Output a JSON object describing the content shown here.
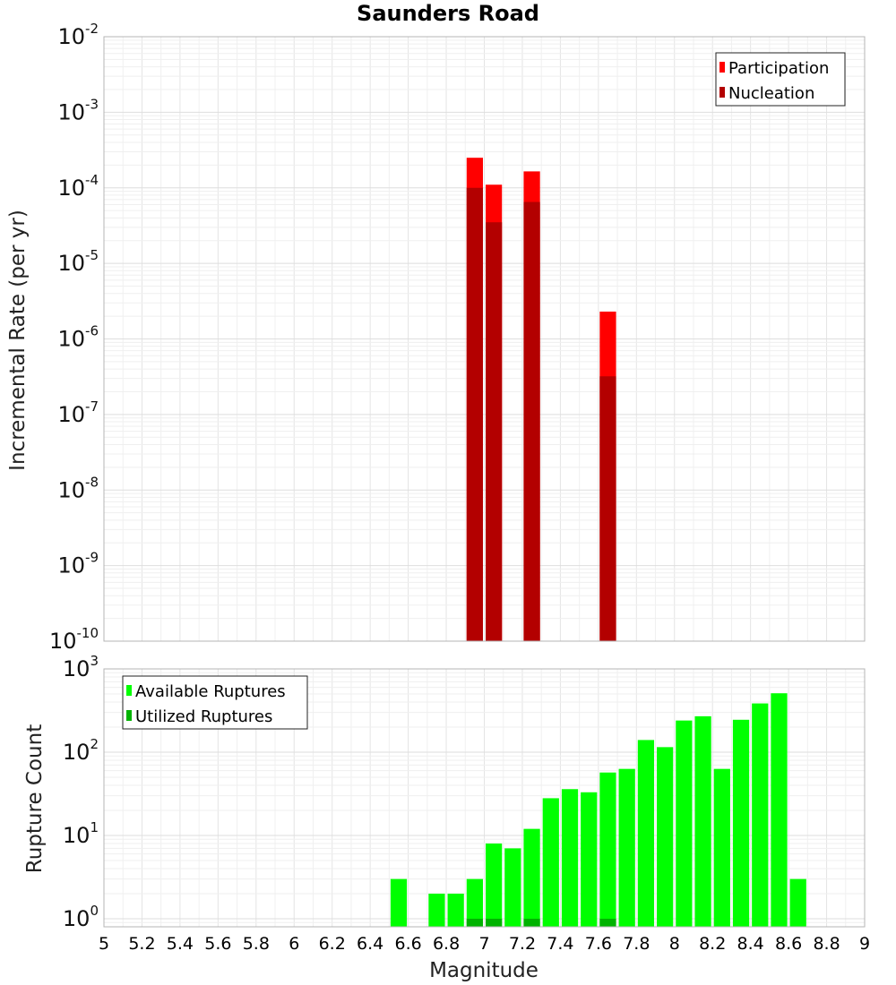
{
  "chart_data": [
    {
      "type": "bar",
      "title": "Saunders Road",
      "xlabel": "",
      "ylabel": "Incremental Rate (per yr)",
      "y_scale": "log",
      "ylim": [
        1e-10,
        0.01
      ],
      "xlim": [
        5,
        9
      ],
      "bin_width": 0.1,
      "grid": true,
      "legend_position": "top-right",
      "series": [
        {
          "name": "Participation",
          "color": "#ff0000",
          "x": [
            6.95,
            7.05,
            7.25,
            7.65
          ],
          "values": [
            0.00025,
            0.00011,
            0.000165,
            2.3e-06
          ]
        },
        {
          "name": "Nucleation",
          "color": "#b30000",
          "x": [
            6.95,
            7.05,
            7.25,
            7.65
          ],
          "values": [
            0.0001,
            3.5e-05,
            6.5e-05,
            3.2e-07
          ]
        }
      ],
      "y_ticks": [
        {
          "base": "10",
          "exp": "-10",
          "value": 1e-10
        },
        {
          "base": "10",
          "exp": "-9",
          "value": 1e-09
        },
        {
          "base": "10",
          "exp": "-8",
          "value": 1e-08
        },
        {
          "base": "10",
          "exp": "-7",
          "value": 1e-07
        },
        {
          "base": "10",
          "exp": "-6",
          "value": 1e-06
        },
        {
          "base": "10",
          "exp": "-5",
          "value": 1e-05
        },
        {
          "base": "10",
          "exp": "-4",
          "value": 0.0001
        },
        {
          "base": "10",
          "exp": "-3",
          "value": 0.001
        },
        {
          "base": "10",
          "exp": "-2",
          "value": 0.01
        }
      ]
    },
    {
      "type": "bar",
      "title": "",
      "xlabel": "Magnitude",
      "ylabel": "Rupture Count",
      "y_scale": "log",
      "ylim": [
        0.8,
        1000
      ],
      "xlim": [
        5,
        9
      ],
      "bin_width": 0.1,
      "grid": true,
      "legend_position": "top-left",
      "x_ticks": [
        "5",
        "5.2",
        "5.4",
        "5.6",
        "5.8",
        "6",
        "6.2",
        "6.4",
        "6.6",
        "6.8",
        "7",
        "7.2",
        "7.4",
        "7.6",
        "7.8",
        "8",
        "8.2",
        "8.4",
        "8.6",
        "8.8",
        "9"
      ],
      "series": [
        {
          "name": "Available Ruptures",
          "color": "#00ff00",
          "x": [
            6.55,
            6.75,
            6.85,
            6.95,
            7.05,
            7.15,
            7.25,
            7.35,
            7.45,
            7.55,
            7.65,
            7.75,
            7.85,
            7.95,
            8.05,
            8.15,
            8.25,
            8.35,
            8.45,
            8.55,
            8.65
          ],
          "values": [
            3,
            2,
            2,
            3,
            8,
            7,
            12,
            28,
            36,
            33,
            57,
            63,
            140,
            115,
            240,
            270,
            63,
            245,
            385,
            510,
            3
          ]
        },
        {
          "name": "Utilized Ruptures",
          "color": "#00b300",
          "x": [
            6.95,
            7.05,
            7.25,
            7.65
          ],
          "values": [
            1,
            1,
            1,
            1
          ]
        }
      ],
      "y_ticks": [
        {
          "base": "10",
          "exp": "0",
          "value": 1
        },
        {
          "base": "10",
          "exp": "1",
          "value": 10
        },
        {
          "base": "10",
          "exp": "2",
          "value": 100
        },
        {
          "base": "10",
          "exp": "3",
          "value": 1000
        }
      ]
    }
  ]
}
